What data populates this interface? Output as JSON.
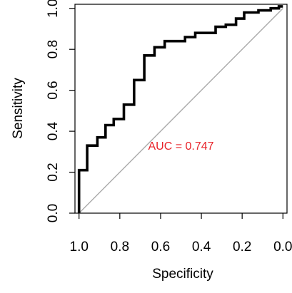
{
  "chart_data": {
    "type": "line",
    "title": "",
    "xlabel": "Specificity",
    "ylabel": "Sensitivity",
    "x_reversed": true,
    "xlim": [
      1.02,
      -0.02
    ],
    "ylim": [
      0.0,
      1.02
    ],
    "xticks": [
      1.0,
      0.8,
      0.6,
      0.4,
      0.2,
      0.0
    ],
    "xtick_labels": [
      "1.0",
      "0.8",
      "0.6",
      "0.4",
      "0.2",
      "0.0"
    ],
    "yticks": [
      0.0,
      0.2,
      0.4,
      0.6,
      0.8,
      1.0
    ],
    "ytick_labels": [
      "0.0",
      "0.2",
      "0.4",
      "0.6",
      "0.8",
      "1.0"
    ],
    "grid": false,
    "reference_line": {
      "from": [
        1.0,
        0.0
      ],
      "to": [
        0.0,
        1.0
      ],
      "color": "#aaaaaa"
    },
    "series": [
      {
        "color": "#000000",
        "points": [
          [
            1.0,
            0.0
          ],
          [
            1.0,
            0.21
          ],
          [
            0.96,
            0.21
          ],
          [
            0.96,
            0.33
          ],
          [
            0.91,
            0.33
          ],
          [
            0.91,
            0.37
          ],
          [
            0.87,
            0.37
          ],
          [
            0.87,
            0.43
          ],
          [
            0.83,
            0.43
          ],
          [
            0.83,
            0.46
          ],
          [
            0.78,
            0.46
          ],
          [
            0.78,
            0.53
          ],
          [
            0.73,
            0.53
          ],
          [
            0.73,
            0.65
          ],
          [
            0.68,
            0.65
          ],
          [
            0.68,
            0.77
          ],
          [
            0.63,
            0.77
          ],
          [
            0.63,
            0.81
          ],
          [
            0.58,
            0.81
          ],
          [
            0.58,
            0.84
          ],
          [
            0.48,
            0.84
          ],
          [
            0.48,
            0.86
          ],
          [
            0.43,
            0.86
          ],
          [
            0.43,
            0.88
          ],
          [
            0.33,
            0.88
          ],
          [
            0.33,
            0.91
          ],
          [
            0.28,
            0.91
          ],
          [
            0.28,
            0.92
          ],
          [
            0.23,
            0.92
          ],
          [
            0.23,
            0.95
          ],
          [
            0.19,
            0.95
          ],
          [
            0.19,
            0.98
          ],
          [
            0.12,
            0.98
          ],
          [
            0.12,
            0.99
          ],
          [
            0.06,
            0.99
          ],
          [
            0.06,
            1.0
          ],
          [
            0.02,
            1.0
          ],
          [
            0.02,
            1.01
          ],
          [
            0.0,
            1.01
          ]
        ]
      }
    ],
    "annotation": {
      "text": "AUC = 0.747",
      "x": 0.5,
      "y": 0.3,
      "color": "#e8232a"
    }
  }
}
